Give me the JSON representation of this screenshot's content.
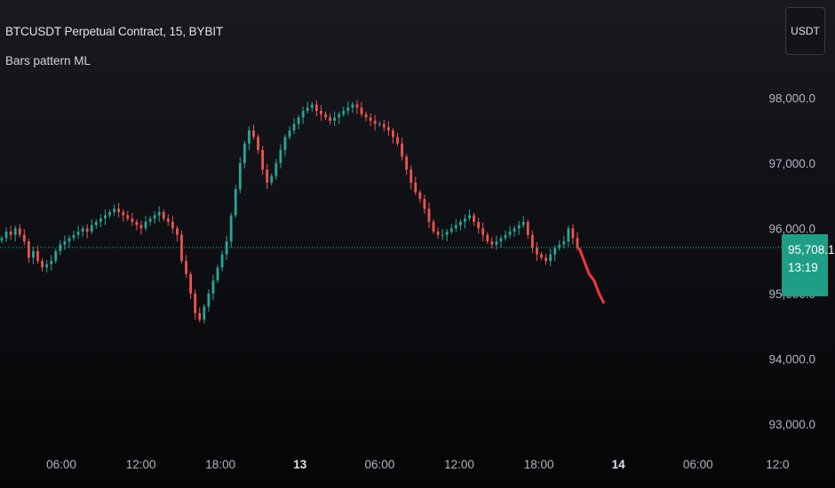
{
  "header": {
    "title": "BTCUSDT Perpetual Contract, 15, BYBIT",
    "indicator": "Bars pattern ML"
  },
  "currency_button": {
    "label": "USDT"
  },
  "last_price": {
    "value": "95,708.1",
    "countdown": "13:19",
    "color": "#1e9e86"
  },
  "colors": {
    "up": "#26a69a",
    "down": "#ef5350",
    "forecast": "#f23645",
    "price_line": "#26a69a"
  },
  "chart_data": {
    "type": "candlestick",
    "y_tick_labels": [
      "98,000.0",
      "97,000.0",
      "96,000.0",
      "95,000.0",
      "94,000.0",
      "93,000.0"
    ],
    "y_tick_values": [
      98000,
      97000,
      96000,
      95000,
      94000,
      93000
    ],
    "ylim": [
      92700,
      99500
    ],
    "x_tick_labels": [
      {
        "label": "06:00",
        "bold": false
      },
      {
        "label": "12:00",
        "bold": false
      },
      {
        "label": "18:00",
        "bold": false
      },
      {
        "label": "13",
        "bold": true
      },
      {
        "label": "06:00",
        "bold": false
      },
      {
        "label": "12:00",
        "bold": false
      },
      {
        "label": "18:00",
        "bold": false
      },
      {
        "label": "14",
        "bold": true
      },
      {
        "label": "06:00",
        "bold": false
      },
      {
        "label": "12:0",
        "bold": false
      }
    ],
    "closes": [
      95850,
      95950,
      95900,
      96000,
      95900,
      95800,
      95550,
      95650,
      95500,
      95400,
      95450,
      95500,
      95650,
      95750,
      95800,
      95850,
      95900,
      95950,
      96000,
      95950,
      96050,
      96100,
      96150,
      96200,
      96250,
      96300,
      96250,
      96200,
      96150,
      96100,
      96050,
      96000,
      96100,
      96150,
      96200,
      96250,
      96150,
      96100,
      96000,
      95900,
      95500,
      95300,
      95000,
      94700,
      94600,
      94800,
      95000,
      95200,
      95400,
      95600,
      95800,
      96200,
      96600,
      97000,
      97300,
      97500,
      97400,
      97200,
      96900,
      96700,
      96800,
      97000,
      97200,
      97400,
      97500,
      97600,
      97700,
      97800,
      97850,
      97900,
      97800,
      97750,
      97700,
      97650,
      97700,
      97750,
      97800,
      97850,
      97900,
      97850,
      97750,
      97700,
      97650,
      97600,
      97600,
      97550,
      97500,
      97400,
      97300,
      97100,
      96900,
      96700,
      96550,
      96450,
      96300,
      96100,
      95950,
      95900,
      95900,
      95950,
      96000,
      96050,
      96100,
      96150,
      96200,
      96100,
      96000,
      95900,
      95800,
      95750,
      95800,
      95850,
      95900,
      95950,
      96000,
      96050,
      96100,
      95900,
      95700,
      95600,
      95550,
      95500,
      95600,
      95700,
      95750,
      95800,
      96000,
      95850,
      95700
    ],
    "forecast_points": [
      95700,
      95500,
      95300,
      95200,
      95000,
      94850
    ]
  }
}
